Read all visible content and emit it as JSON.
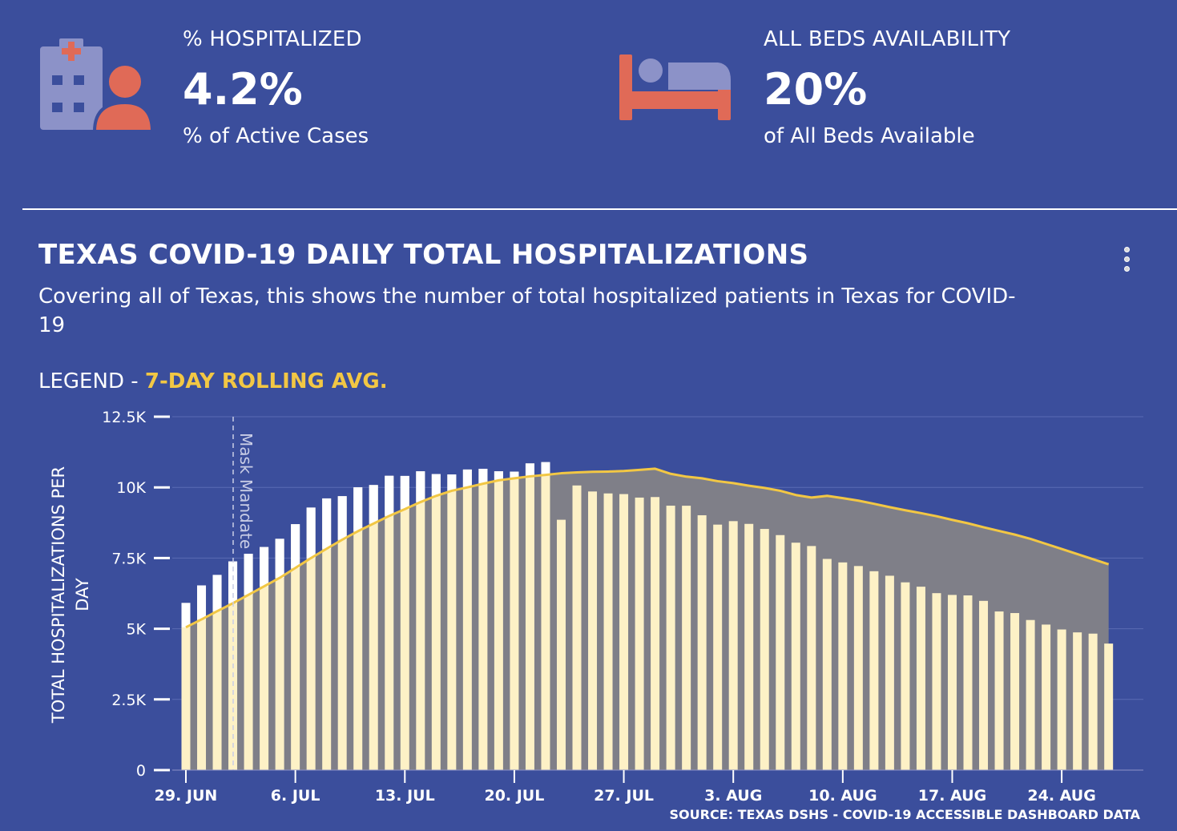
{
  "stats": [
    {
      "label": "% HOSPITALIZED",
      "value": "4.2%",
      "sub": "% of Active Cases",
      "icon": "hospital-patient-icon"
    },
    {
      "label": "ALL BEDS AVAILABILITY",
      "value": "20%",
      "sub": "of All Beds Available",
      "icon": "bed-icon"
    }
  ],
  "chart": {
    "title": "TEXAS COVID-19 DAILY TOTAL HOSPITALIZATIONS",
    "description": "Covering all of Texas, this shows the number of total hospitalized patients in Texas for COVID-19",
    "legend_prefix": "LEGEND - ",
    "legend_key": "7-DAY ROLLING AVG.",
    "source": "SOURCE: TEXAS DSHS - COVID-19 ACCESSIBLE DASHBOARD DATA",
    "menu_icon": "more-vertical-icon"
  },
  "colors": {
    "background": "#3b4e9c",
    "bar": "#fdf1c6",
    "bar_above_avg": "#ffffff",
    "avg_line": "#f2c744",
    "avg_fill": "#7f7f88",
    "accent_orange": "#e06a57",
    "icon_gray": "#8c92c8"
  },
  "chart_data": {
    "type": "bar",
    "ylabel": "TOTAL HOSPITALIZATIONS PER DAY",
    "xlabel": "",
    "ylim": [
      0,
      12500
    ],
    "yticks": [
      0,
      2500,
      5000,
      7500,
      10000,
      12500
    ],
    "ytick_labels": [
      "0",
      "2.5K",
      "5K",
      "7.5K",
      "10K",
      "12.5K"
    ],
    "x_tick_labels": [
      "29. JUN",
      "6. JUL",
      "13. JUL",
      "20. JUL",
      "27. JUL",
      "3. AUG",
      "10. AUG",
      "17. AUG",
      "24. AUG"
    ],
    "x_tick_indices": [
      0,
      7,
      14,
      21,
      28,
      35,
      42,
      49,
      56
    ],
    "annotation": {
      "label": "Mask Mandate",
      "index": 3
    },
    "series": [
      {
        "name": "",
        "values": [
          5913,
          6533,
          6904,
          7382,
          7652,
          7890,
          8181,
          8698,
          9286,
          9610,
          9689,
          10002,
          10083,
          10410,
          10405,
          10569,
          10471,
          10457,
          10632,
          10658,
          10569,
          10557,
          10848,
          10893,
          8855,
          10068,
          9855,
          9786,
          9763,
          9639,
          9658,
          9353,
          9351,
          9014,
          8683,
          8806,
          8709,
          8530,
          8312,
          8044,
          7926,
          7470,
          7346,
          7218,
          7034,
          6875,
          6641,
          6487,
          6259,
          6196,
          6179,
          5986,
          5611,
          5555,
          5309,
          5147,
          4974,
          4871,
          4827,
          4475
        ]
      },
      {
        "name": "7-DAY ROLLING AVG.",
        "values": [
          5050,
          5330,
          5620,
          5900,
          6200,
          6500,
          6800,
          7150,
          7500,
          7830,
          8150,
          8450,
          8720,
          8990,
          9230,
          9480,
          9700,
          9880,
          10000,
          10130,
          10250,
          10320,
          10390,
          10440,
          10500,
          10530,
          10550,
          10560,
          10580,
          10620,
          10660,
          10480,
          10380,
          10320,
          10220,
          10150,
          10060,
          9980,
          9880,
          9730,
          9640,
          9700,
          9620,
          9530,
          9420,
          9300,
          9190,
          9090,
          8980,
          8850,
          8730,
          8590,
          8460,
          8330,
          8180,
          8000,
          7820,
          7640,
          7460,
          7280
        ]
      }
    ],
    "grid": true,
    "legend_position": "top-left"
  }
}
